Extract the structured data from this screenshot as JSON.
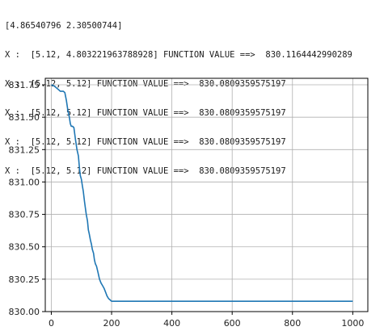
{
  "console": {
    "lines": [
      "[4.86540796 2.30500744]",
      "X :  [5.12, 4.803221963788928] FUNCTION VALUE ==>  830.1164442990289",
      "X :  [5.12, 5.12] FUNCTION VALUE ==>  830.0809359575197",
      "X :  [5.12, 5.12] FUNCTION VALUE ==>  830.0809359575197",
      "X :  [5.12, 5.12] FUNCTION VALUE ==>  830.0809359575197",
      "X :  [5.12, 5.12] FUNCTION VALUE ==>  830.0809359575197"
    ]
  },
  "chart_data": {
    "type": "line",
    "title": "",
    "xlabel": "",
    "ylabel": "",
    "xlim": [
      -20,
      1050
    ],
    "ylim": [
      830.0,
      831.8
    ],
    "xticks": [
      0,
      200,
      400,
      600,
      800,
      1000
    ],
    "xtick_labels": [
      "0",
      "200",
      "400",
      "600",
      "800",
      "1000"
    ],
    "yticks": [
      830.0,
      830.25,
      830.5,
      830.75,
      831.0,
      831.25,
      831.5,
      831.75
    ],
    "ytick_labels": [
      "830.00",
      "830.25",
      "830.50",
      "830.75",
      "831.00",
      "831.25",
      "831.50",
      "831.75"
    ],
    "grid": true,
    "line_color": "#1f77b4",
    "series": [
      {
        "x": [
          0,
          10,
          20,
          25,
          30,
          35,
          40,
          45,
          50,
          55,
          60,
          63,
          66,
          70,
          75,
          80,
          85,
          88,
          90,
          93,
          96,
          100,
          103,
          106,
          110,
          113,
          116,
          120,
          123,
          126,
          130,
          133,
          136,
          140,
          143,
          146,
          150,
          155,
          160,
          165,
          170,
          175,
          180,
          185,
          190,
          195,
          200,
          205,
          210,
          250,
          300,
          400,
          500,
          600,
          700,
          800,
          900,
          1000
        ],
        "y": [
          831.75,
          831.74,
          831.72,
          831.71,
          831.7,
          831.7,
          831.7,
          831.69,
          831.63,
          831.55,
          831.5,
          831.45,
          831.43,
          831.43,
          831.42,
          831.33,
          831.25,
          831.22,
          831.2,
          831.12,
          831.05,
          831.02,
          830.97,
          830.93,
          830.85,
          830.8,
          830.75,
          830.7,
          830.63,
          830.6,
          830.55,
          830.52,
          830.48,
          830.45,
          830.4,
          830.37,
          830.35,
          830.3,
          830.25,
          830.22,
          830.2,
          830.18,
          830.15,
          830.12,
          830.1,
          830.09,
          830.08,
          830.08,
          830.08,
          830.08,
          830.08,
          830.08,
          830.08,
          830.08,
          830.08,
          830.08,
          830.08,
          830.08
        ]
      }
    ]
  }
}
